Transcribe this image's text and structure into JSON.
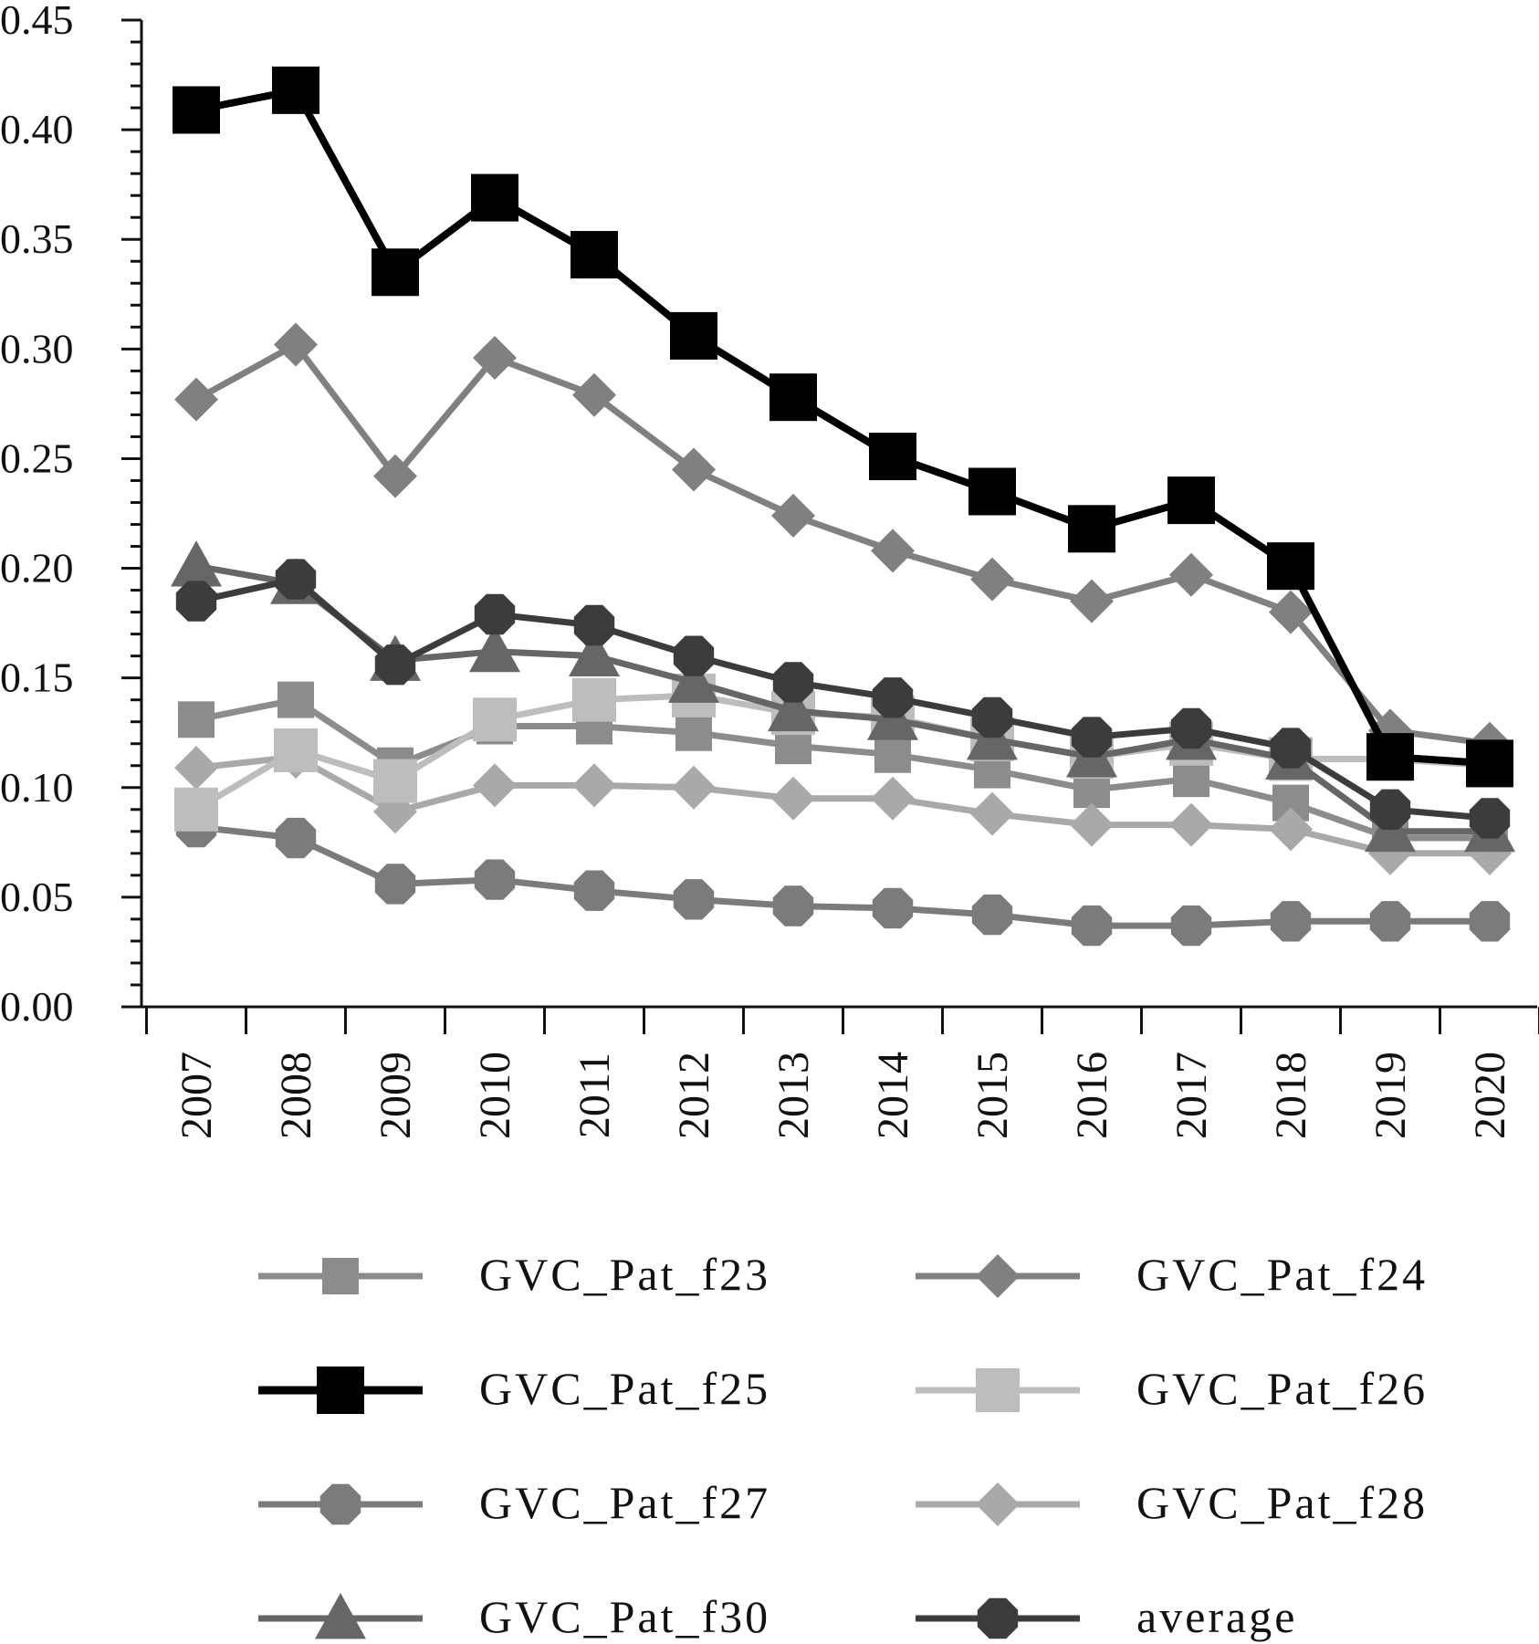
{
  "chart_data": {
    "type": "line",
    "title": "",
    "xlabel": "",
    "ylabel": "",
    "ylim": [
      0,
      0.45
    ],
    "y_ticks": [
      "0.00",
      "0.05",
      "0.10",
      "0.15",
      "0.20",
      "0.25",
      "0.30",
      "0.35",
      "0.40",
      "0.45"
    ],
    "categories": [
      "2007",
      "2008",
      "2009",
      "2010",
      "2011",
      "2012",
      "2013",
      "2014",
      "2015",
      "2016",
      "2017",
      "2018",
      "2019",
      "2020"
    ],
    "legend_position": "bottom",
    "grid": false,
    "series": [
      {
        "name": "GVC_Pat_f23",
        "color": "#8c8c8c",
        "marker": "square",
        "marker_size": "small",
        "values": [
          0.131,
          0.14,
          0.11,
          0.128,
          0.128,
          0.125,
          0.119,
          0.115,
          0.108,
          0.099,
          0.104,
          0.093,
          0.077,
          0.077
        ]
      },
      {
        "name": "GVC_Pat_f24",
        "color": "#808080",
        "marker": "diamond",
        "marker_size": "small",
        "values": [
          0.277,
          0.302,
          0.242,
          0.296,
          0.279,
          0.245,
          0.224,
          0.208,
          0.195,
          0.185,
          0.197,
          0.18,
          0.126,
          0.12
        ]
      },
      {
        "name": "GVC_Pat_f25",
        "color": "#000000",
        "marker": "square",
        "marker_size": "large",
        "values": [
          0.409,
          0.418,
          0.335,
          0.369,
          0.343,
          0.306,
          0.278,
          0.251,
          0.235,
          0.218,
          0.231,
          0.201,
          0.114,
          0.111
        ]
      },
      {
        "name": "GVC_Pat_f26",
        "color": "#bdbdbd",
        "marker": "square",
        "marker_size": "medium",
        "values": [
          0.09,
          0.117,
          0.103,
          0.131,
          0.14,
          0.142,
          0.134,
          0.132,
          0.122,
          0.114,
          0.12,
          0.113,
          0.113,
          0.11
        ]
      },
      {
        "name": "GVC_Pat_f27",
        "color": "#7b7b7b",
        "marker": "circle",
        "marker_size": "medium",
        "values": [
          0.082,
          0.077,
          0.056,
          0.058,
          0.053,
          0.049,
          0.046,
          0.045,
          0.042,
          0.037,
          0.037,
          0.039,
          0.039,
          0.039
        ]
      },
      {
        "name": "GVC_Pat_f28",
        "color": "#a9a9a9",
        "marker": "diamond",
        "marker_size": "small",
        "values": [
          0.109,
          0.114,
          0.089,
          0.101,
          0.101,
          0.1,
          0.095,
          0.095,
          0.088,
          0.083,
          0.083,
          0.081,
          0.07,
          0.07
        ]
      },
      {
        "name": "GVC_Pat_f30",
        "color": "#666666",
        "marker": "triangle",
        "marker_size": "medium",
        "values": [
          0.201,
          0.193,
          0.158,
          0.162,
          0.16,
          0.148,
          0.135,
          0.131,
          0.122,
          0.114,
          0.122,
          0.113,
          0.08,
          0.08
        ]
      },
      {
        "name": "average",
        "color": "#3c3c3c",
        "marker": "circle",
        "marker_size": "medium",
        "values": [
          0.185,
          0.195,
          0.156,
          0.179,
          0.174,
          0.16,
          0.148,
          0.141,
          0.132,
          0.123,
          0.127,
          0.118,
          0.09,
          0.086
        ]
      }
    ]
  }
}
